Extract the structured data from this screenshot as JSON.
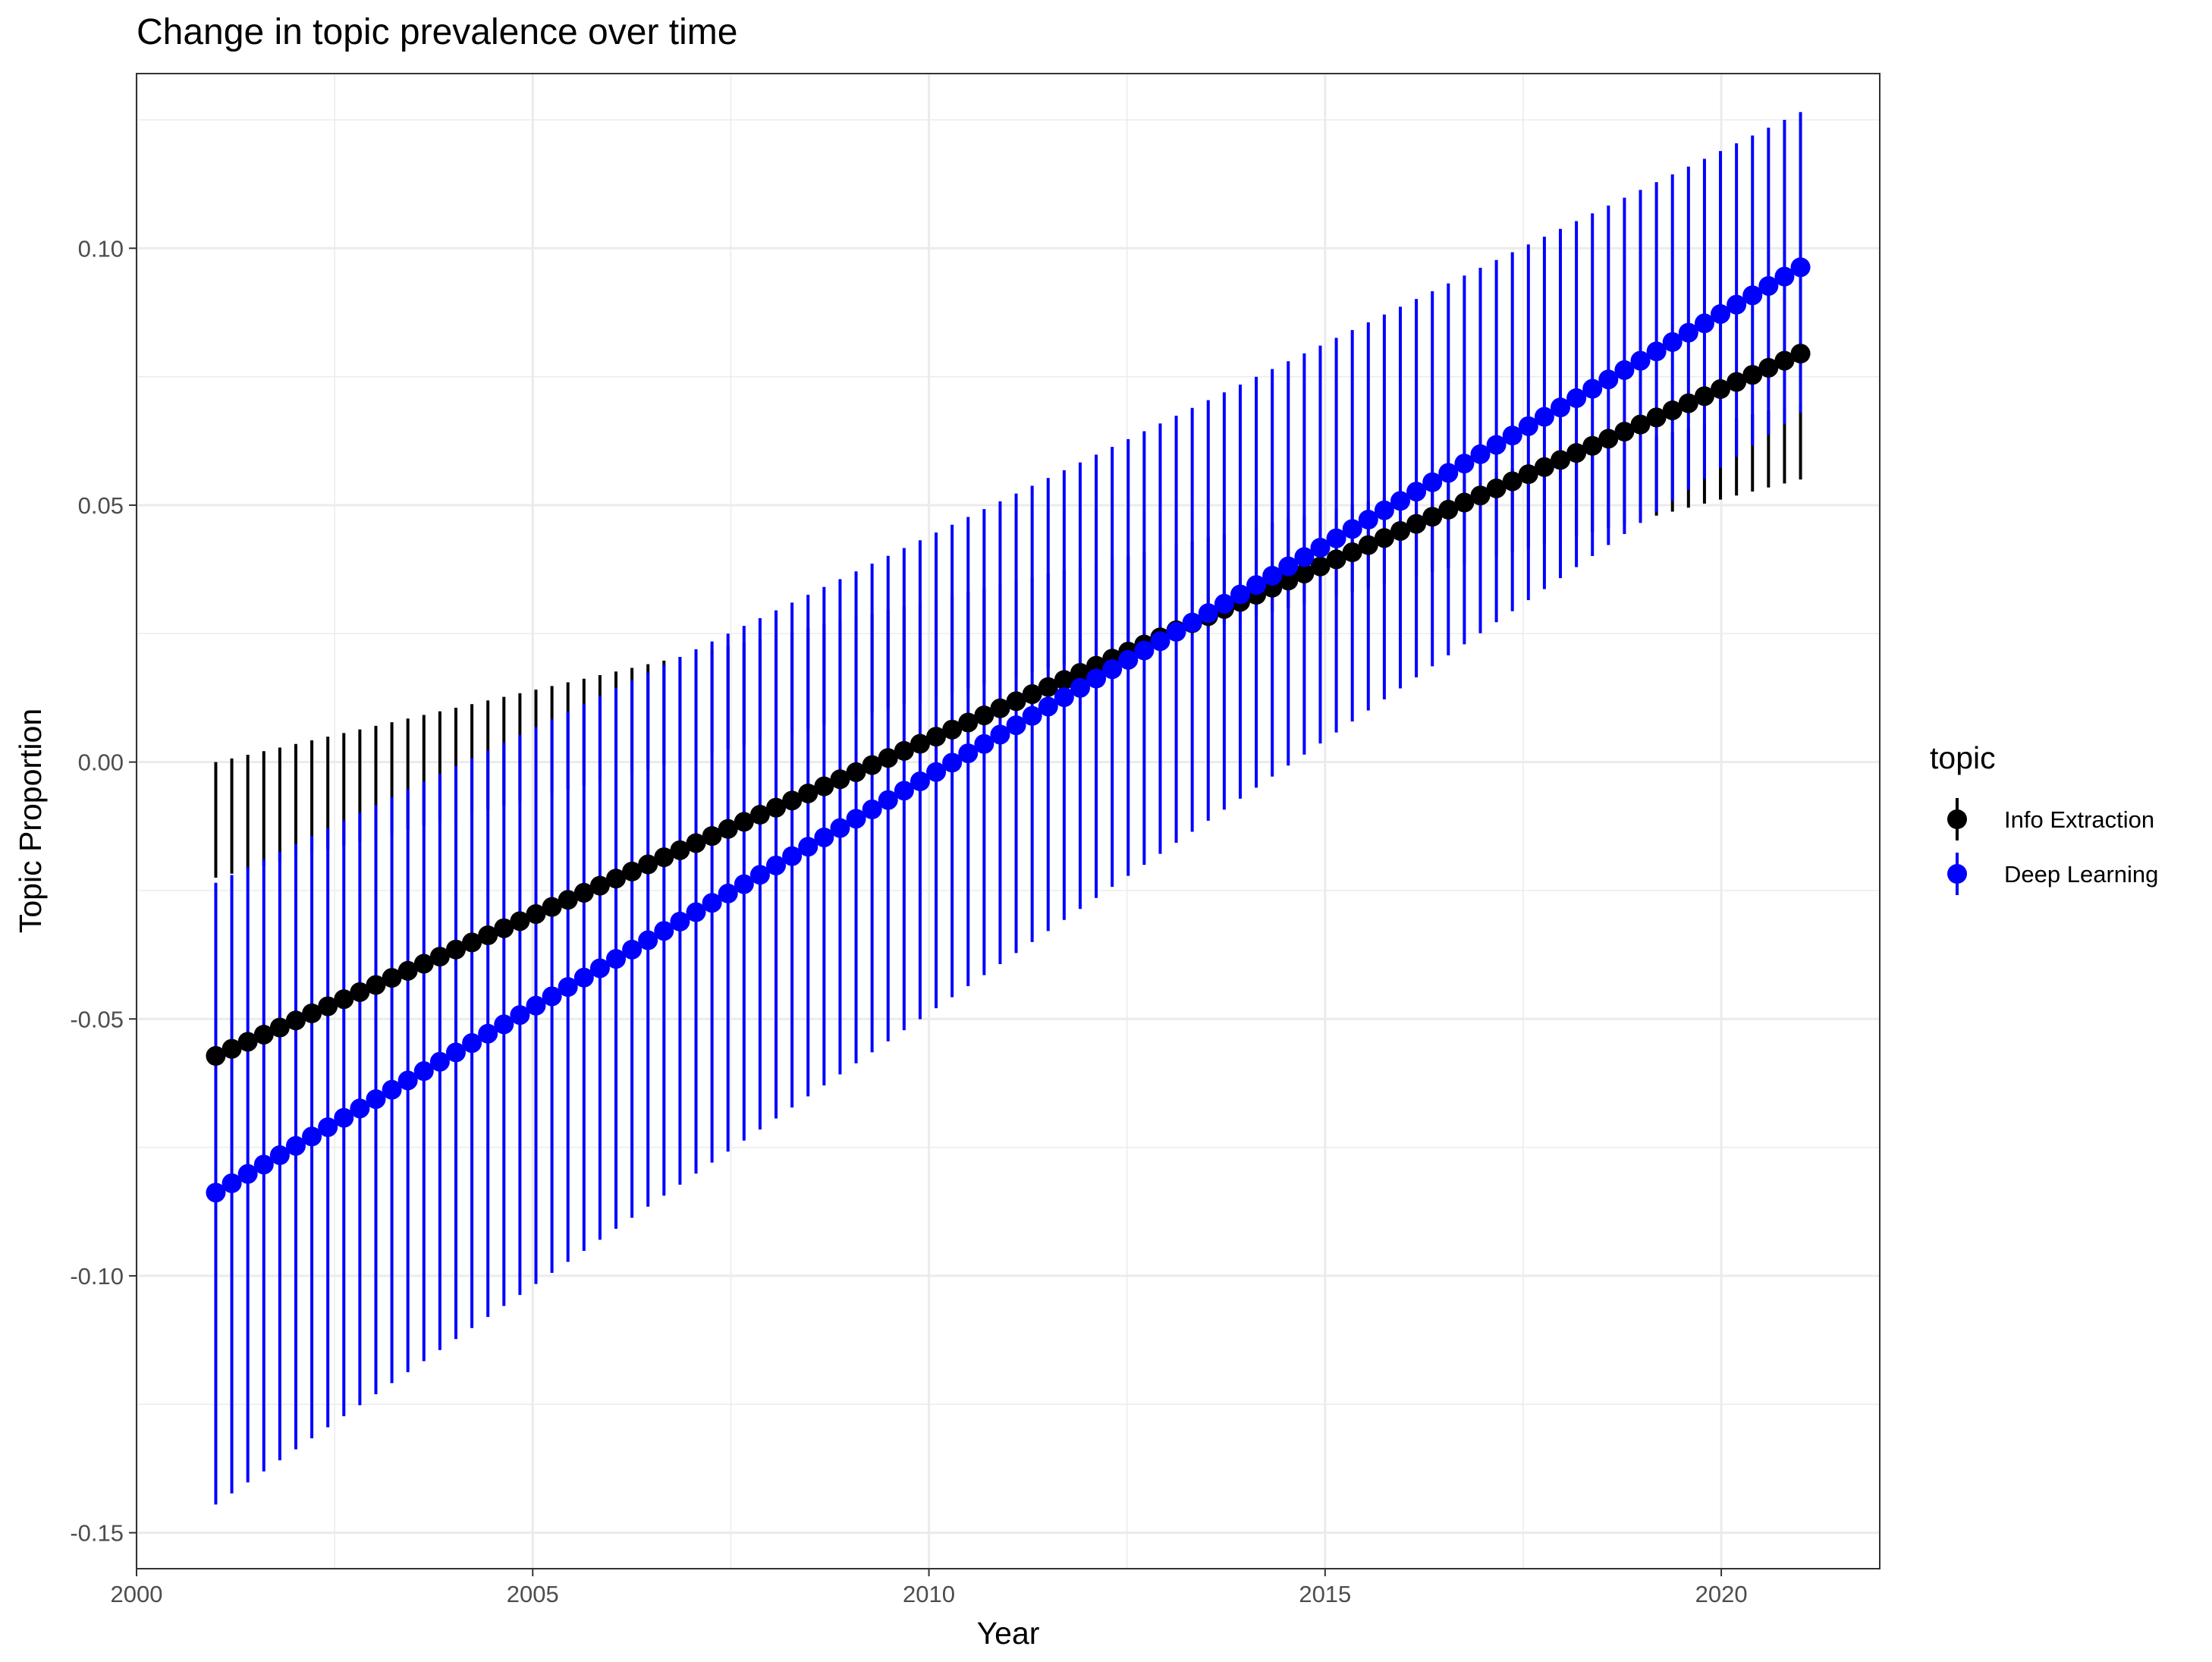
{
  "chart_data": {
    "type": "scatter",
    "title": "Change in topic prevalence over time",
    "xlabel": "Year",
    "ylabel": "Topic Proportion",
    "xlim": [
      2000,
      2022
    ],
    "ylim": [
      -0.157,
      0.134
    ],
    "x_ticks": [
      2000,
      2005,
      2010,
      2015,
      2020
    ],
    "x_tick_labels": [
      "2000",
      "2005",
      "2010",
      "2015",
      "2020"
    ],
    "y_ticks": [
      -0.15,
      -0.1,
      -0.05,
      0.0,
      0.05,
      0.1
    ],
    "y_tick_labels": [
      "-0.15",
      "-0.10",
      "-0.05",
      "0.00",
      "0.05",
      "0.10"
    ],
    "grid": true,
    "legend": {
      "title": "topic",
      "position": "right"
    },
    "x_range": {
      "start": 2001,
      "end": 2021,
      "count": 100
    },
    "series": [
      {
        "name": "Info Extraction",
        "color": "#000000",
        "estimate": {
          "start": -0.0572,
          "end": 0.0795
        },
        "lower": {
          "start": -0.0225,
          "end": 0.055
        },
        "upper": {
          "start": 0.0,
          "end": 0.0698
        }
      },
      {
        "name": "Deep Learning",
        "color": "#0000ff",
        "estimate": {
          "start": -0.0838,
          "end": 0.0963
        },
        "lower": {
          "start": -0.1445,
          "end": 0.068
        },
        "upper": {
          "start": -0.0235,
          "end": 0.1265
        }
      }
    ]
  }
}
